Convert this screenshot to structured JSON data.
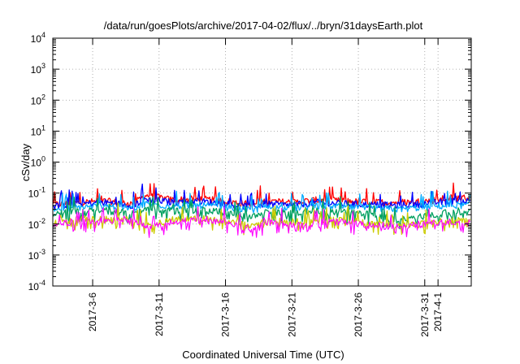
{
  "chart_data": {
    "type": "line",
    "title": "/data/run/goesPlots/archive/2017-04-02/flux/../bryn/31daysEarth.plot",
    "xlabel": "Coordinated Universal Time (UTC)",
    "ylabel": "cSv/day",
    "yscale": "log",
    "ylim": [
      0.0001,
      10000
    ],
    "xlim": [
      "2017-03-03T00:00",
      "2017-04-03T12:00"
    ],
    "grid": true,
    "legend": "none",
    "y_ticks": [
      {
        "base": "10",
        "exp": "4"
      },
      {
        "base": "10",
        "exp": "3"
      },
      {
        "base": "10",
        "exp": "2"
      },
      {
        "base": "10",
        "exp": "1"
      },
      {
        "base": "10",
        "exp": "0"
      },
      {
        "base": "10",
        "exp": "-1"
      },
      {
        "base": "10",
        "exp": "-2"
      },
      {
        "base": "10",
        "exp": "-3"
      },
      {
        "base": "10",
        "exp": "-4"
      }
    ],
    "x_ticks": [
      "2017-3-6",
      "2017-3-11",
      "2017-3-16",
      "2017-3-21",
      "2017-3-26",
      "2017-3-31",
      "2017-4-1"
    ],
    "series": [
      {
        "color": "#ff0000",
        "dates": [
          "2017-03-03",
          "2017-03-05",
          "2017-03-07",
          "2017-03-09",
          "2017-03-10",
          "2017-03-12",
          "2017-03-14",
          "2017-03-16",
          "2017-03-18",
          "2017-03-19",
          "2017-03-21",
          "2017-03-23",
          "2017-03-25",
          "2017-03-27",
          "2017-03-29",
          "2017-03-31",
          "2017-04-02"
        ],
        "values": [
          0.042,
          0.05,
          0.055,
          0.045,
          0.085,
          0.06,
          0.065,
          0.055,
          0.042,
          0.055,
          0.05,
          0.06,
          0.055,
          0.05,
          0.05,
          0.055,
          0.07
        ]
      },
      {
        "color": "#0000ff",
        "dates": [
          "2017-03-03",
          "2017-03-05",
          "2017-03-07",
          "2017-03-09",
          "2017-03-10",
          "2017-03-12",
          "2017-03-14",
          "2017-03-16",
          "2017-03-18",
          "2017-03-19",
          "2017-03-21",
          "2017-03-23",
          "2017-03-25",
          "2017-03-27",
          "2017-03-29",
          "2017-03-31",
          "2017-04-02"
        ],
        "values": [
          0.038,
          0.045,
          0.05,
          0.04,
          0.065,
          0.05,
          0.055,
          0.045,
          0.035,
          0.045,
          0.04,
          0.05,
          0.045,
          0.042,
          0.04,
          0.045,
          0.055
        ]
      },
      {
        "color": "#00aaff",
        "dates": [
          "2017-03-03",
          "2017-03-05",
          "2017-03-07",
          "2017-03-09",
          "2017-03-10",
          "2017-03-12",
          "2017-03-14",
          "2017-03-16",
          "2017-03-18",
          "2017-03-19",
          "2017-03-21",
          "2017-03-23",
          "2017-03-25",
          "2017-03-27",
          "2017-03-29",
          "2017-03-31",
          "2017-04-02"
        ],
        "values": [
          0.03,
          0.035,
          0.038,
          0.032,
          0.045,
          0.038,
          0.04,
          0.035,
          0.028,
          0.035,
          0.032,
          0.038,
          0.035,
          0.032,
          0.03,
          0.035,
          0.04
        ]
      },
      {
        "color": "#00a060",
        "dates": [
          "2017-03-03",
          "2017-03-05",
          "2017-03-07",
          "2017-03-09",
          "2017-03-10",
          "2017-03-12",
          "2017-03-14",
          "2017-03-16",
          "2017-03-18",
          "2017-03-19",
          "2017-03-21",
          "2017-03-23",
          "2017-03-25",
          "2017-03-27",
          "2017-03-29",
          "2017-03-31",
          "2017-04-02"
        ],
        "values": [
          0.022,
          0.025,
          0.027,
          0.021,
          0.03,
          0.026,
          0.028,
          0.024,
          0.016,
          0.024,
          0.022,
          0.026,
          0.024,
          0.02,
          0.013,
          0.018,
          0.024
        ]
      },
      {
        "color": "#cccc00",
        "dates": [
          "2017-03-03",
          "2017-03-05",
          "2017-03-07",
          "2017-03-09",
          "2017-03-10",
          "2017-03-12",
          "2017-03-14",
          "2017-03-16",
          "2017-03-18",
          "2017-03-19",
          "2017-03-21",
          "2017-03-23",
          "2017-03-25",
          "2017-03-27",
          "2017-03-29",
          "2017-03-31",
          "2017-04-02"
        ],
        "values": [
          0.012,
          0.014,
          0.015,
          0.014,
          0.009,
          0.014,
          0.015,
          0.013,
          0.008,
          0.013,
          0.012,
          0.014,
          0.013,
          0.011,
          0.009,
          0.011,
          0.013
        ]
      },
      {
        "color": "#ff00ff",
        "dates": [
          "2017-03-03",
          "2017-03-05",
          "2017-03-07",
          "2017-03-09",
          "2017-03-10",
          "2017-03-12",
          "2017-03-14",
          "2017-03-16",
          "2017-03-18",
          "2017-03-19",
          "2017-03-21",
          "2017-03-23",
          "2017-03-25",
          "2017-03-27",
          "2017-03-29",
          "2017-03-31",
          "2017-04-02"
        ],
        "values": [
          0.01,
          0.012,
          0.013,
          0.016,
          0.0075,
          0.012,
          0.013,
          0.011,
          0.0068,
          0.011,
          0.01,
          0.012,
          0.011,
          0.009,
          0.008,
          0.01,
          0.012
        ]
      }
    ]
  }
}
